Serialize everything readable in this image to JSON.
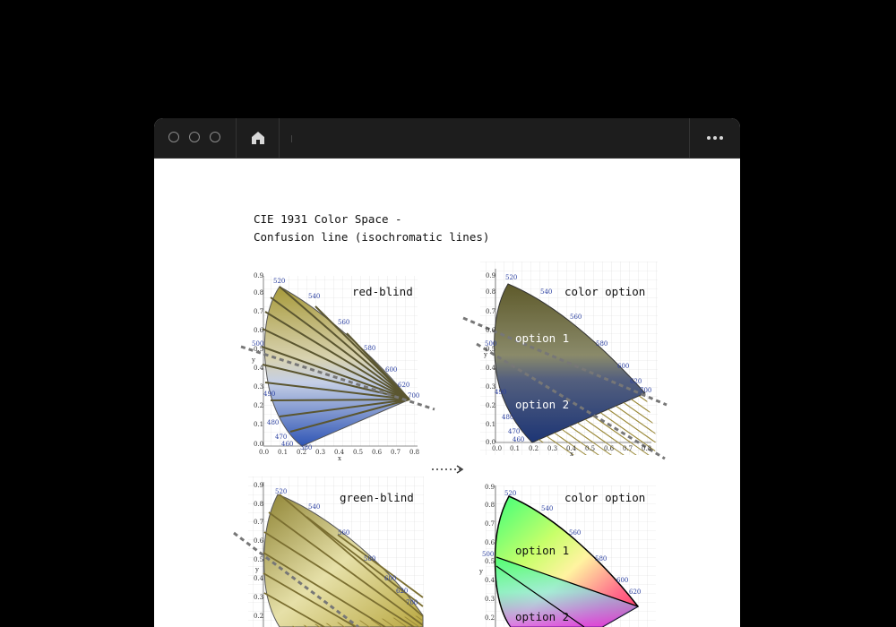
{
  "window": {
    "home_icon": "home-icon",
    "more_icon": "more-icon"
  },
  "page": {
    "title_line1": "CIE 1931 Color Space -",
    "title_line2": "Confusion line (isochromatic lines)"
  },
  "panels": {
    "red_blind": "red-blind",
    "color_option_top": "color option",
    "option1_top": "option 1",
    "option2_top": "option 2",
    "green_blind": "green-blind",
    "color_option_bottom": "color option",
    "option1_bottom": "option 1",
    "option2_bottom": "option 2"
  },
  "axes": {
    "y_ticks": [
      "0.9",
      "0.8",
      "0.7",
      "0.6",
      "0.5",
      "0.4",
      "0.3",
      "0.2",
      "0.1",
      "0.0"
    ],
    "x_ticks": [
      "0.0",
      "0.1",
      "0.2",
      "0.3",
      "0.4",
      "0.5",
      "0.6",
      "0.7",
      "0.8"
    ],
    "wavelengths": [
      "520",
      "540",
      "560",
      "580",
      "600",
      "620",
      "700",
      "500",
      "490",
      "480",
      "470",
      "460",
      "380"
    ],
    "x_label": "x",
    "y_label": "y"
  }
}
